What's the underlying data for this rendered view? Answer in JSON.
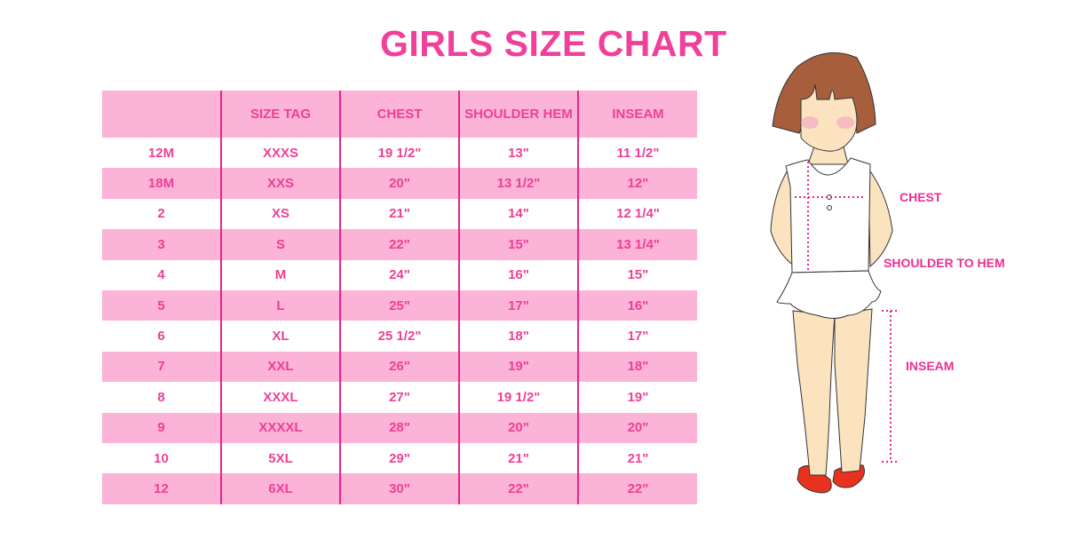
{
  "title": "GIRLS SIZE CHART",
  "colors": {
    "accent": "#ef3f96",
    "row_pink": "#fbb3d7",
    "divider": "#e8238f"
  },
  "chart_data": {
    "type": "table",
    "headers": [
      "",
      "SIZE TAG",
      "CHEST",
      "SHOULDER HEM",
      "INSEAM"
    ],
    "rows": [
      [
        "12M",
        "XXXS",
        "19 1/2\"",
        "13\"",
        "11 1/2\""
      ],
      [
        "18M",
        "XXS",
        "20\"",
        "13 1/2\"",
        "12\""
      ],
      [
        "2",
        "XS",
        "21\"",
        "14\"",
        "12 1/4\""
      ],
      [
        "3",
        "S",
        "22\"",
        "15\"",
        "13 1/4\""
      ],
      [
        "4",
        "M",
        "24\"",
        "16\"",
        "15\""
      ],
      [
        "5",
        "L",
        "25\"",
        "17\"",
        "16\""
      ],
      [
        "6",
        "XL",
        "25 1/2\"",
        "18\"",
        "17\""
      ],
      [
        "7",
        "XXL",
        "26\"",
        "19\"",
        "18\""
      ],
      [
        "8",
        "XXXL",
        "27\"",
        "19 1/2\"",
        "19\""
      ],
      [
        "9",
        "XXXXL",
        "28\"",
        "20\"",
        "20\""
      ],
      [
        "10",
        "5XL",
        "29\"",
        "21\"",
        "21\""
      ],
      [
        "12",
        "6XL",
        "30\"",
        "22\"",
        "22\""
      ]
    ]
  },
  "illustration": {
    "labels": {
      "chest": "CHEST",
      "shoulder_to_hem": "SHOULDER TO HEM",
      "inseam": "INSEAM"
    }
  }
}
